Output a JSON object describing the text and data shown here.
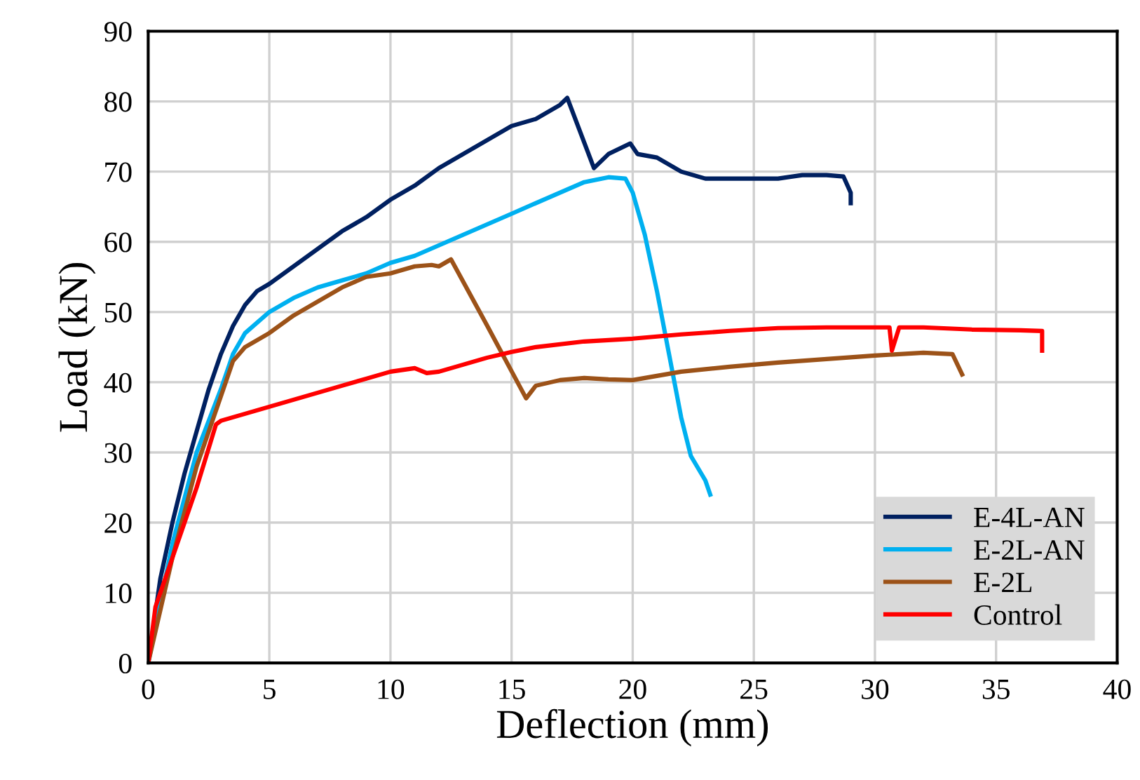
{
  "chart_data": {
    "type": "line",
    "xlabel": "Deflection (mm)",
    "ylabel": "Load (kN)",
    "xlim": [
      0,
      40
    ],
    "xticks": [
      0,
      5,
      10,
      15,
      20,
      25,
      30,
      35,
      40
    ],
    "ylim": [
      0,
      90
    ],
    "yticks": [
      0,
      10,
      20,
      30,
      40,
      50,
      60,
      70,
      80,
      90
    ],
    "grid": true,
    "legend": "bottom right",
    "marker": "none",
    "line_style": "solid",
    "series": [
      {
        "name": "E-4L-AN",
        "color": "#002060",
        "x": [
          0,
          0.5,
          1,
          1.5,
          2,
          2.5,
          3,
          3.5,
          4,
          4.5,
          5,
          6,
          7,
          8,
          9,
          10,
          11,
          12,
          13,
          14,
          15,
          16,
          17,
          17.3,
          18.4,
          19,
          19.9,
          20.2,
          21,
          22,
          23,
          25,
          26,
          27,
          28,
          28.7,
          29,
          29
        ],
        "values": [
          0,
          12,
          20,
          27,
          33,
          39,
          44,
          48,
          51,
          53,
          54,
          56.5,
          59,
          61.5,
          63.5,
          66,
          68,
          70.5,
          72.5,
          74.5,
          76.5,
          77.5,
          79.5,
          80.5,
          70.5,
          72.5,
          74,
          72.5,
          72,
          70,
          69,
          69,
          69,
          69.5,
          69.5,
          69.3,
          67,
          65.5
        ]
      },
      {
        "name": "E-2L-AN",
        "color": "#00b0f0",
        "x": [
          0,
          1,
          2,
          3,
          3.5,
          4,
          5,
          6,
          7,
          8,
          9,
          10,
          11,
          12,
          13,
          14,
          15,
          16,
          17,
          18,
          19,
          19.7,
          20,
          20.5,
          21,
          21.5,
          22,
          22.4,
          23,
          23.2
        ],
        "values": [
          0,
          17,
          30,
          39,
          44,
          47,
          50,
          52,
          53.5,
          54.5,
          55.5,
          57,
          58,
          59.5,
          61,
          62.5,
          64,
          65.5,
          67,
          68.5,
          69.2,
          69,
          67,
          61,
          53,
          44,
          35,
          29.5,
          26,
          24
        ]
      },
      {
        "name": "E-2L",
        "color": "#9c5218",
        "x": [
          0,
          1,
          2,
          3,
          3.5,
          4,
          5,
          6,
          7,
          8,
          9,
          10,
          11,
          11.7,
          12,
          12.5,
          14,
          15.6,
          16,
          17,
          18,
          19,
          20,
          22,
          24,
          26,
          28,
          30,
          32,
          33.2,
          33.6
        ],
        "values": [
          0,
          15,
          28,
          38,
          43,
          45,
          47,
          49.5,
          51.5,
          53.5,
          55,
          55.5,
          56.5,
          56.7,
          56.5,
          57.5,
          48,
          37.7,
          39.5,
          40.3,
          40.6,
          40.4,
          40.3,
          41.5,
          42.2,
          42.8,
          43.3,
          43.8,
          44.2,
          44,
          41.1
        ]
      },
      {
        "name": "Control",
        "color": "#ff0000",
        "x": [
          0,
          0.3,
          1,
          2,
          2.8,
          3,
          4,
          5,
          6,
          7,
          8,
          9,
          10,
          11,
          11.5,
          12,
          13,
          14,
          15,
          16,
          18,
          20,
          22,
          24,
          26,
          28,
          30,
          30.6,
          30.7,
          31,
          32,
          34,
          36,
          36.9,
          36.9
        ],
        "values": [
          0,
          8,
          15,
          25,
          34,
          34.5,
          35.5,
          36.5,
          37.5,
          38.5,
          39.5,
          40.5,
          41.5,
          42,
          41.3,
          41.5,
          42.5,
          43.5,
          44.3,
          45,
          45.8,
          46.2,
          46.8,
          47.3,
          47.7,
          47.8,
          47.8,
          47.8,
          44.5,
          47.8,
          47.8,
          47.5,
          47.4,
          47.3,
          44.5
        ]
      }
    ]
  }
}
